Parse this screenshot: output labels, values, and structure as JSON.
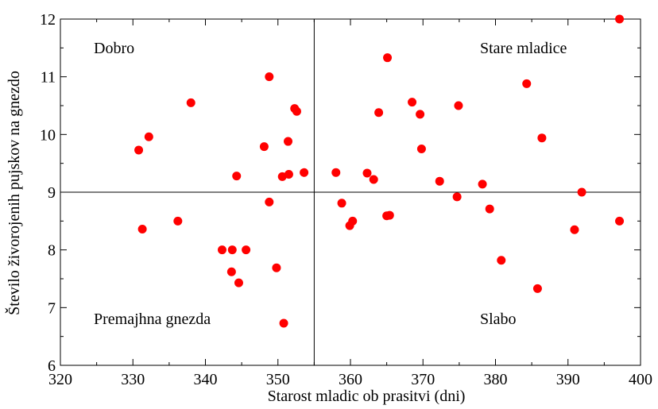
{
  "chart_data": {
    "type": "scatter",
    "xlabel": "Starost mladic ob prasitvi (dni)",
    "ylabel": "Število živorojenih pujskov na gnezdo",
    "xlim": [
      320,
      400
    ],
    "ylim": [
      6,
      12
    ],
    "x_ticks": [
      320,
      330,
      340,
      350,
      360,
      370,
      380,
      390,
      400
    ],
    "y_ticks": [
      6,
      7,
      8,
      9,
      10,
      11,
      12
    ],
    "reference_lines": {
      "x": 355,
      "y": 9
    },
    "quadrant_labels": {
      "top_left": "Dobro",
      "top_right": "Stare mladice",
      "bottom_left": "Premajhna gnezda",
      "bottom_right": "Slabo"
    },
    "grid": false,
    "marker_color": "#ff0000",
    "points": [
      {
        "x": 330.8,
        "y": 9.73
      },
      {
        "x": 332.2,
        "y": 9.96
      },
      {
        "x": 331.3,
        "y": 8.36
      },
      {
        "x": 336.2,
        "y": 8.5
      },
      {
        "x": 338.0,
        "y": 10.55
      },
      {
        "x": 342.3,
        "y": 8.0
      },
      {
        "x": 343.7,
        "y": 8.0
      },
      {
        "x": 345.6,
        "y": 8.0
      },
      {
        "x": 343.6,
        "y": 7.62
      },
      {
        "x": 344.6,
        "y": 7.43
      },
      {
        "x": 344.3,
        "y": 9.28
      },
      {
        "x": 348.1,
        "y": 9.79
      },
      {
        "x": 348.8,
        "y": 11.0
      },
      {
        "x": 348.8,
        "y": 8.83
      },
      {
        "x": 349.8,
        "y": 7.69
      },
      {
        "x": 350.8,
        "y": 6.73
      },
      {
        "x": 350.6,
        "y": 9.27
      },
      {
        "x": 351.5,
        "y": 9.31
      },
      {
        "x": 351.4,
        "y": 9.88
      },
      {
        "x": 352.3,
        "y": 10.45
      },
      {
        "x": 352.6,
        "y": 10.4
      },
      {
        "x": 353.6,
        "y": 9.34
      },
      {
        "x": 358.0,
        "y": 9.34
      },
      {
        "x": 358.8,
        "y": 8.81
      },
      {
        "x": 359.9,
        "y": 8.42
      },
      {
        "x": 360.3,
        "y": 8.5
      },
      {
        "x": 362.3,
        "y": 9.33
      },
      {
        "x": 363.2,
        "y": 9.22
      },
      {
        "x": 363.9,
        "y": 10.38
      },
      {
        "x": 365.1,
        "y": 11.33
      },
      {
        "x": 365.0,
        "y": 8.59
      },
      {
        "x": 365.4,
        "y": 8.6
      },
      {
        "x": 368.5,
        "y": 10.56
      },
      {
        "x": 369.6,
        "y": 10.35
      },
      {
        "x": 369.8,
        "y": 9.75
      },
      {
        "x": 372.3,
        "y": 9.19
      },
      {
        "x": 374.7,
        "y": 8.92
      },
      {
        "x": 374.9,
        "y": 10.5
      },
      {
        "x": 378.2,
        "y": 9.14
      },
      {
        "x": 379.2,
        "y": 8.71
      },
      {
        "x": 380.8,
        "y": 7.82
      },
      {
        "x": 384.3,
        "y": 10.88
      },
      {
        "x": 385.8,
        "y": 7.33
      },
      {
        "x": 386.4,
        "y": 9.94
      },
      {
        "x": 390.9,
        "y": 8.35
      },
      {
        "x": 391.9,
        "y": 9.0
      },
      {
        "x": 397.1,
        "y": 12.0
      },
      {
        "x": 397.1,
        "y": 8.5
      }
    ]
  }
}
